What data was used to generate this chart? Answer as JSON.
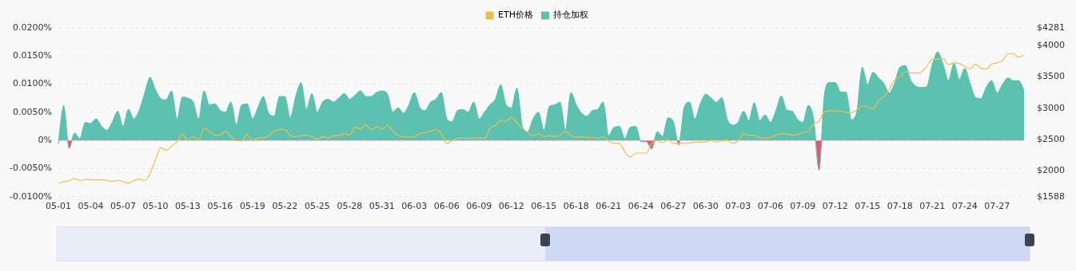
{
  "chart_data": {
    "type": "area",
    "legend": "top",
    "grid": "y",
    "categories": [
      "05-01",
      null,
      null,
      null,
      null,
      null,
      "05-04",
      null,
      null,
      null,
      null,
      null,
      "05-07",
      null,
      null,
      null,
      null,
      null,
      "05-10",
      null,
      null,
      null,
      null,
      null,
      "05-13",
      null,
      null,
      null,
      null,
      null,
      "05-16",
      null,
      null,
      null,
      null,
      null,
      "05-19",
      null,
      null,
      null,
      null,
      null,
      "05-22",
      null,
      null,
      null,
      null,
      null,
      "05-25",
      null,
      null,
      null,
      null,
      null,
      "05-28",
      null,
      null,
      null,
      null,
      null,
      "05-31",
      null,
      null,
      null,
      null,
      null,
      "06-03",
      null,
      null,
      null,
      null,
      null,
      "06-06",
      null,
      null,
      null,
      null,
      null,
      "06-09",
      null,
      null,
      null,
      null,
      null,
      "06-12",
      null,
      null,
      null,
      null,
      null,
      "06-15",
      null,
      null,
      null,
      null,
      null,
      "06-18",
      null,
      null,
      null,
      null,
      null,
      "06-21",
      null,
      null,
      null,
      null,
      null,
      "06-24",
      null,
      null,
      null,
      null,
      null,
      "06-27",
      null,
      null,
      null,
      null,
      null,
      "06-30",
      null,
      null,
      null,
      null,
      null,
      "07-03",
      null,
      null,
      null,
      null,
      null,
      "07-06",
      null,
      null,
      null,
      null,
      null,
      "07-09",
      null,
      null,
      null,
      null,
      null,
      "07-12",
      null,
      null,
      null,
      null,
      null,
      "07-15",
      null,
      null,
      null,
      null,
      null,
      "07-18",
      null,
      null,
      null,
      null,
      null,
      "07-21",
      null,
      null,
      null,
      null,
      null,
      "07-24",
      null,
      null,
      null,
      null,
      null,
      "07-27",
      null,
      null,
      null,
      null,
      null
    ],
    "ylim": [
      -0.01,
      0.02
    ],
    "yticks": [
      {
        "value": -0.01,
        "label": "-0.0100%"
      },
      {
        "value": -0.005,
        "label": "-0.0050%"
      },
      {
        "value": 0,
        "label": "0%"
      },
      {
        "value": 0.005,
        "label": "0.0050%"
      },
      {
        "value": 0.01,
        "label": "0.0100%"
      },
      {
        "value": 0.015,
        "label": "0.0150%"
      },
      {
        "value": 0.02,
        "label": "0.0200%"
      }
    ],
    "y2lim": [
      1588,
      4281
    ],
    "y2ticks": [
      {
        "value": 1588,
        "label": "$1588"
      },
      {
        "value": 2000,
        "label": "$2000"
      },
      {
        "value": 2500,
        "label": "$2500"
      },
      {
        "value": 3000,
        "label": "$3000"
      },
      {
        "value": 3500,
        "label": "$3500"
      },
      {
        "value": 4000,
        "label": "$4000"
      },
      {
        "value": 4281,
        "label": "$4281"
      }
    ],
    "series": [
      {
        "name": "ETH价格",
        "type": "line",
        "axis": "y2",
        "color": "#efbe4f",
        "values": [
          1803,
          1825,
          1846,
          1877,
          1846,
          1860,
          1860,
          1855,
          1860,
          1846,
          1833,
          1846,
          1833,
          1803,
          1846,
          1870,
          1846,
          1956,
          2175,
          2373,
          2329,
          2395,
          2461,
          2592,
          2482,
          2548,
          2482,
          2680,
          2636,
          2570,
          2570,
          2636,
          2548,
          2482,
          2482,
          2579,
          2482,
          2526,
          2526,
          2561,
          2636,
          2658,
          2658,
          2561,
          2548,
          2561,
          2570,
          2548,
          2504,
          2548,
          2526,
          2561,
          2561,
          2592,
          2570,
          2693,
          2667,
          2737,
          2658,
          2702,
          2667,
          2724,
          2636,
          2561,
          2548,
          2535,
          2548,
          2592,
          2614,
          2636,
          2658,
          2592,
          2439,
          2482,
          2518,
          2526,
          2518,
          2526,
          2526,
          2518,
          2680,
          2724,
          2811,
          2789,
          2855,
          2768,
          2680,
          2614,
          2561,
          2592,
          2548,
          2561,
          2548,
          2561,
          2636,
          2561,
          2535,
          2548,
          2535,
          2535,
          2518,
          2548,
          2482,
          2439,
          2439,
          2307,
          2219,
          2285,
          2285,
          2285,
          2439,
          2482,
          2447,
          2504,
          2439,
          2439,
          2439,
          2447,
          2456,
          2461,
          2461,
          2491,
          2456,
          2482,
          2491,
          2438,
          2482,
          2592,
          2570,
          2570,
          2526,
          2526,
          2535,
          2570,
          2592,
          2592,
          2570,
          2579,
          2614,
          2636,
          2746,
          2790,
          2944,
          2958,
          2958,
          2958,
          2931,
          2931,
          2975,
          3032,
          3019,
          2988,
          3120,
          3186,
          3296,
          3450,
          3494,
          3582,
          3560,
          3560,
          3582,
          3670,
          3780,
          3780,
          3794,
          3692,
          3723,
          3714,
          3670,
          3626,
          3705,
          3635,
          3626,
          3705,
          3723,
          3758,
          3868,
          3868,
          3811,
          3846
        ]
      },
      {
        "name": "持仓加权",
        "color": "#5cc1ae",
        "values": [
          -0.0006,
          0.0062,
          -0.0014,
          0.0013,
          0.0003,
          0.0032,
          0.003,
          0.0038,
          0.0025,
          0.0018,
          0.0032,
          0.0052,
          0.0025,
          0.0055,
          0.0038,
          0.0053,
          0.0083,
          0.0112,
          0.009,
          0.0074,
          0.0072,
          0.0088,
          0.0038,
          0.0077,
          0.0075,
          0.0068,
          0.0038,
          0.0088,
          0.0063,
          0.0065,
          0.0053,
          0.005,
          0.0068,
          0.0028,
          0.0063,
          0.0065,
          0.0038,
          0.0058,
          0.0078,
          0.0048,
          0.0043,
          0.0078,
          0.0078,
          0.004,
          0.0078,
          0.0103,
          0.0055,
          0.0083,
          0.005,
          0.0068,
          0.0073,
          0.0068,
          0.0075,
          0.0083,
          0.0073,
          0.008,
          0.0088,
          0.0078,
          0.0078,
          0.0085,
          0.0088,
          0.0082,
          0.005,
          0.0058,
          0.0048,
          0.0063,
          0.0085,
          0.0058,
          0.0053,
          0.0068,
          0.0073,
          0.0085,
          0.0038,
          0.0033,
          0.0053,
          0.0055,
          0.005,
          0.0068,
          0.0038,
          0.005,
          0.0063,
          0.0073,
          0.0099,
          0.0063,
          0.0058,
          0.0093,
          0.0025,
          0.0015,
          0.0038,
          0.005,
          0.0018,
          0.006,
          0.0063,
          0.0068,
          0.0018,
          0.0085,
          0.0063,
          0.0048,
          0.0043,
          0.0053,
          0.0055,
          0.0068,
          0.0008,
          0.0023,
          0.0025,
          0.0003,
          0.0023,
          0.0025,
          -0.0002,
          -0.0002,
          -0.0015,
          0.0015,
          0.0007,
          0.004,
          0.0033,
          -0.0008,
          0.0058,
          0.0068,
          0.0038,
          0.0065,
          0.0082,
          0.0075,
          0.0067,
          0.0076,
          0.0037,
          0.0027,
          0.0032,
          0.0052,
          0.0035,
          0.0067,
          0.0035,
          0.0045,
          0.0032,
          0.0052,
          0.0079,
          0.0054,
          0.0052,
          0.0037,
          0.0032,
          0.0062,
          0.0037,
          -0.0053,
          0.0081,
          0.0103,
          0.0103,
          0.0086,
          0.0086,
          0.0037,
          0.005,
          0.013,
          0.0099,
          0.0121,
          0.0111,
          0.0101,
          0.0084,
          0.0101,
          0.013,
          0.0133,
          0.0106,
          0.0096,
          0.0094,
          0.0096,
          0.0135,
          0.0157,
          0.0135,
          0.0106,
          0.0137,
          0.0108,
          0.0128,
          0.0101,
          0.0076,
          0.0074,
          0.0094,
          0.0106,
          0.0084,
          0.0099,
          0.0111,
          0.0106,
          0.0106,
          0.0089
        ]
      }
    ]
  }
}
